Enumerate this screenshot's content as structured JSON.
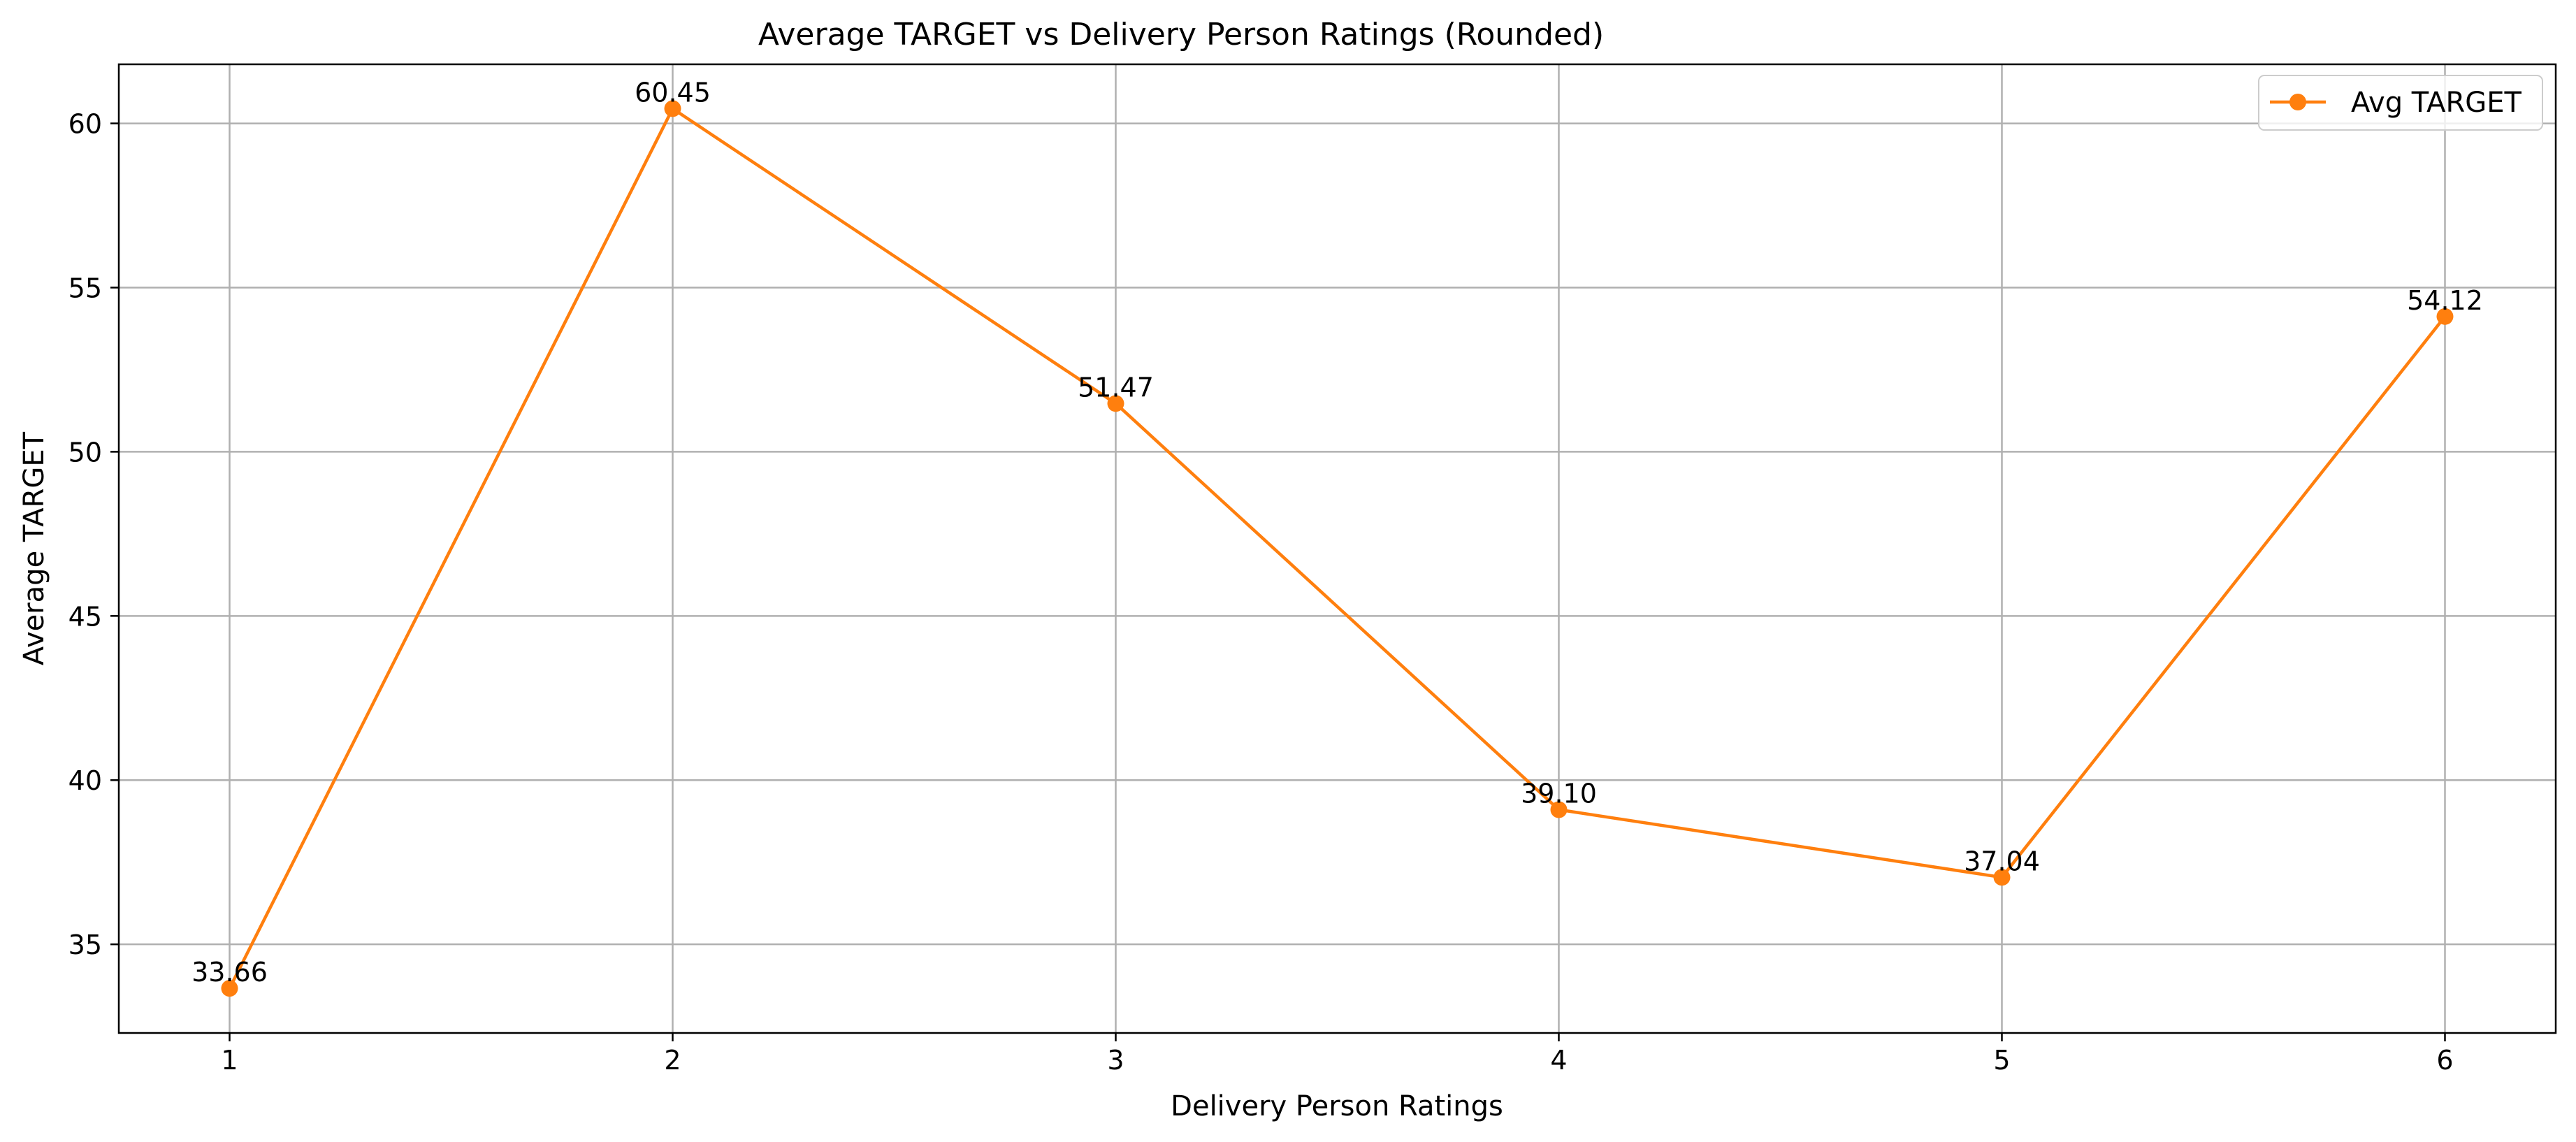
{
  "chart_data": {
    "type": "line",
    "title": "Average TARGET vs Delivery Person Ratings (Rounded)",
    "xlabel": "Delivery Person Ratings",
    "ylabel": "Average TARGET",
    "x": [
      1,
      2,
      3,
      4,
      5,
      6
    ],
    "x_ticks": [
      "1",
      "2",
      "3",
      "4",
      "5",
      "6"
    ],
    "xlim": [
      0.75,
      6.25
    ],
    "y_ticks": [
      "35",
      "40",
      "45",
      "50",
      "55",
      "60"
    ],
    "ylim": [
      32.3,
      61.8
    ],
    "series": [
      {
        "name": "Avg TARGET",
        "values": [
          33.66,
          60.45,
          51.47,
          39.1,
          37.04,
          54.12
        ],
        "labels": [
          "33.66",
          "60.45",
          "51.47",
          "39.10",
          "37.04",
          "54.12"
        ],
        "color": "#ff7f0e",
        "marker": "circle"
      }
    ],
    "grid": true,
    "legend_position": "top-right"
  }
}
